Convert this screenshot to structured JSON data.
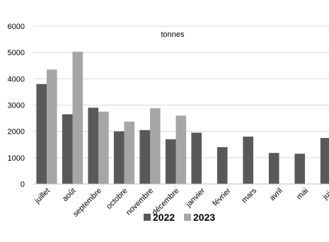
{
  "chart_data": {
    "type": "bar",
    "unit_label": "tonnes",
    "categories": [
      "juillet",
      "août",
      "septembre",
      "octobre",
      "novembre",
      "décembre",
      "janvier",
      "février",
      "mars",
      "avril",
      "mai",
      "juin"
    ],
    "series": [
      {
        "name": "2022",
        "color": "#595959",
        "values": [
          3800,
          2650,
          2900,
          2000,
          2050,
          1700,
          1950,
          1400,
          1800,
          1180,
          1150,
          1750
        ]
      },
      {
        "name": "2023",
        "color": "#a6a6a6",
        "values": [
          4350,
          5030,
          2750,
          2370,
          2880,
          2600,
          null,
          null,
          null,
          null,
          null,
          null
        ]
      }
    ],
    "ylim": [
      0,
      6000
    ],
    "yticks": [
      0,
      1000,
      2000,
      3000,
      4000,
      5000,
      6000
    ],
    "grid": true,
    "legend_position": "bottom"
  }
}
